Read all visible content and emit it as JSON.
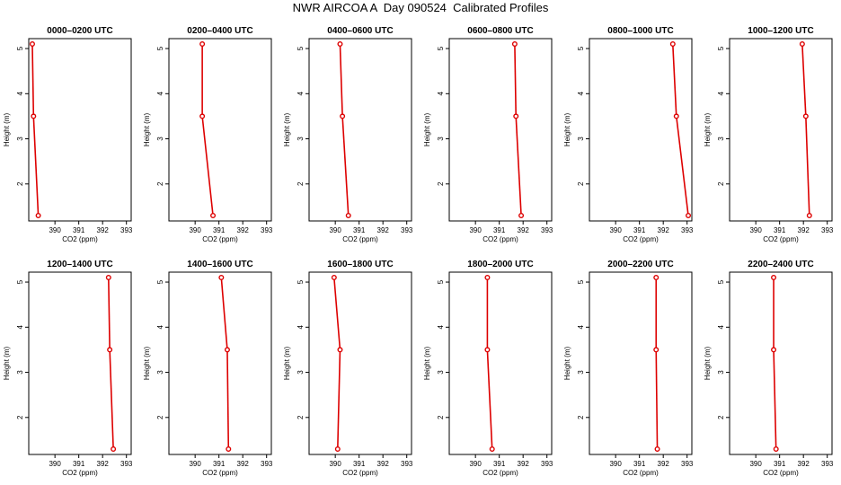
{
  "title": "NWR AIRCOA A  Day 090524  Calibrated Profiles",
  "colors": {
    "profile": "#dd0000",
    "frame": "#000000",
    "background": "#ffffff"
  },
  "chart_data": [
    {
      "type": "line",
      "title": "0000–0200 UTC",
      "xlabel": "CO2 (ppm)",
      "ylabel": "Height (m)",
      "x_ticks": [
        390,
        391,
        392,
        393
      ],
      "y_ticks": [
        2,
        3,
        4,
        5
      ],
      "xlim": [
        388.9,
        393.2
      ],
      "ylim": [
        1.18,
        5.22
      ],
      "x": [
        389.05,
        389.1,
        389.3
      ],
      "y": [
        5.1,
        3.5,
        1.3
      ]
    },
    {
      "type": "line",
      "title": "0200–0400 UTC",
      "xlabel": "CO2 (ppm)",
      "ylabel": "Height (m)",
      "x_ticks": [
        390,
        391,
        392,
        393
      ],
      "y_ticks": [
        2,
        3,
        4,
        5
      ],
      "xlim": [
        388.9,
        393.2
      ],
      "ylim": [
        1.18,
        5.22
      ],
      "x": [
        390.3,
        390.3,
        390.75
      ],
      "y": [
        5.1,
        3.5,
        1.3
      ]
    },
    {
      "type": "line",
      "title": "0400–0600 UTC",
      "xlabel": "CO2 (ppm)",
      "ylabel": "Height (m)",
      "x_ticks": [
        390,
        391,
        392,
        393
      ],
      "y_ticks": [
        2,
        3,
        4,
        5
      ],
      "xlim": [
        388.9,
        393.2
      ],
      "ylim": [
        1.18,
        5.22
      ],
      "x": [
        390.2,
        390.3,
        390.55
      ],
      "y": [
        5.1,
        3.5,
        1.3
      ]
    },
    {
      "type": "line",
      "title": "0600–0800 UTC",
      "xlabel": "CO2 (ppm)",
      "ylabel": "Height (m)",
      "x_ticks": [
        390,
        391,
        392,
        393
      ],
      "y_ticks": [
        2,
        3,
        4,
        5
      ],
      "xlim": [
        388.9,
        393.2
      ],
      "ylim": [
        1.18,
        5.22
      ],
      "x": [
        391.65,
        391.7,
        391.92
      ],
      "y": [
        5.1,
        3.5,
        1.3
      ]
    },
    {
      "type": "line",
      "title": "0800–1000 UTC",
      "xlabel": "CO2 (ppm)",
      "ylabel": "Height (m)",
      "x_ticks": [
        390,
        391,
        392,
        393
      ],
      "y_ticks": [
        2,
        3,
        4,
        5
      ],
      "xlim": [
        388.9,
        393.2
      ],
      "ylim": [
        1.18,
        5.22
      ],
      "x": [
        392.4,
        392.55,
        393.05
      ],
      "y": [
        5.1,
        3.5,
        1.3
      ]
    },
    {
      "type": "line",
      "title": "1000–1200 UTC",
      "xlabel": "CO2 (ppm)",
      "ylabel": "Height (m)",
      "x_ticks": [
        390,
        391,
        392,
        393
      ],
      "y_ticks": [
        2,
        3,
        4,
        5
      ],
      "xlim": [
        388.9,
        393.2
      ],
      "ylim": [
        1.18,
        5.22
      ],
      "x": [
        391.95,
        392.1,
        392.25
      ],
      "y": [
        5.1,
        3.5,
        1.3
      ]
    },
    {
      "type": "line",
      "title": "1200–1400 UTC",
      "xlabel": "CO2 (ppm)",
      "ylabel": "Height (m)",
      "x_ticks": [
        390,
        391,
        392,
        393
      ],
      "y_ticks": [
        2,
        3,
        4,
        5
      ],
      "xlim": [
        388.9,
        393.2
      ],
      "ylim": [
        1.18,
        5.22
      ],
      "x": [
        392.25,
        392.3,
        392.45
      ],
      "y": [
        5.1,
        3.5,
        1.3
      ]
    },
    {
      "type": "line",
      "title": "1400–1600 UTC",
      "xlabel": "CO2 (ppm)",
      "ylabel": "Height (m)",
      "x_ticks": [
        390,
        391,
        392,
        393
      ],
      "y_ticks": [
        2,
        3,
        4,
        5
      ],
      "xlim": [
        388.9,
        393.2
      ],
      "ylim": [
        1.18,
        5.22
      ],
      "x": [
        391.1,
        391.35,
        391.4
      ],
      "y": [
        5.1,
        3.5,
        1.3
      ]
    },
    {
      "type": "line",
      "title": "1600–1800 UTC",
      "xlabel": "CO2 (ppm)",
      "ylabel": "Height (m)",
      "x_ticks": [
        390,
        391,
        392,
        393
      ],
      "y_ticks": [
        2,
        3,
        4,
        5
      ],
      "xlim": [
        388.9,
        393.2
      ],
      "ylim": [
        1.18,
        5.22
      ],
      "x": [
        389.95,
        390.2,
        390.1
      ],
      "y": [
        5.1,
        3.5,
        1.3
      ]
    },
    {
      "type": "line",
      "title": "1800–2000 UTC",
      "xlabel": "CO2 (ppm)",
      "ylabel": "Height (m)",
      "x_ticks": [
        390,
        391,
        392,
        393
      ],
      "y_ticks": [
        2,
        3,
        4,
        5
      ],
      "xlim": [
        388.9,
        393.2
      ],
      "ylim": [
        1.18,
        5.22
      ],
      "x": [
        390.5,
        390.5,
        390.7
      ],
      "y": [
        5.1,
        3.5,
        1.3
      ]
    },
    {
      "type": "line",
      "title": "2000–2200 UTC",
      "xlabel": "CO2 (ppm)",
      "ylabel": "Height (m)",
      "x_ticks": [
        390,
        391,
        392,
        393
      ],
      "y_ticks": [
        2,
        3,
        4,
        5
      ],
      "xlim": [
        388.9,
        393.2
      ],
      "ylim": [
        1.18,
        5.22
      ],
      "x": [
        391.7,
        391.7,
        391.75
      ],
      "y": [
        5.1,
        3.5,
        1.3
      ]
    },
    {
      "type": "line",
      "title": "2200–2400 UTC",
      "xlabel": "CO2 (ppm)",
      "ylabel": "Height (m)",
      "x_ticks": [
        390,
        391,
        392,
        393
      ],
      "y_ticks": [
        2,
        3,
        4,
        5
      ],
      "xlim": [
        388.9,
        393.2
      ],
      "ylim": [
        1.18,
        5.22
      ],
      "x": [
        390.75,
        390.75,
        390.85
      ],
      "y": [
        5.1,
        3.5,
        1.3
      ]
    }
  ]
}
